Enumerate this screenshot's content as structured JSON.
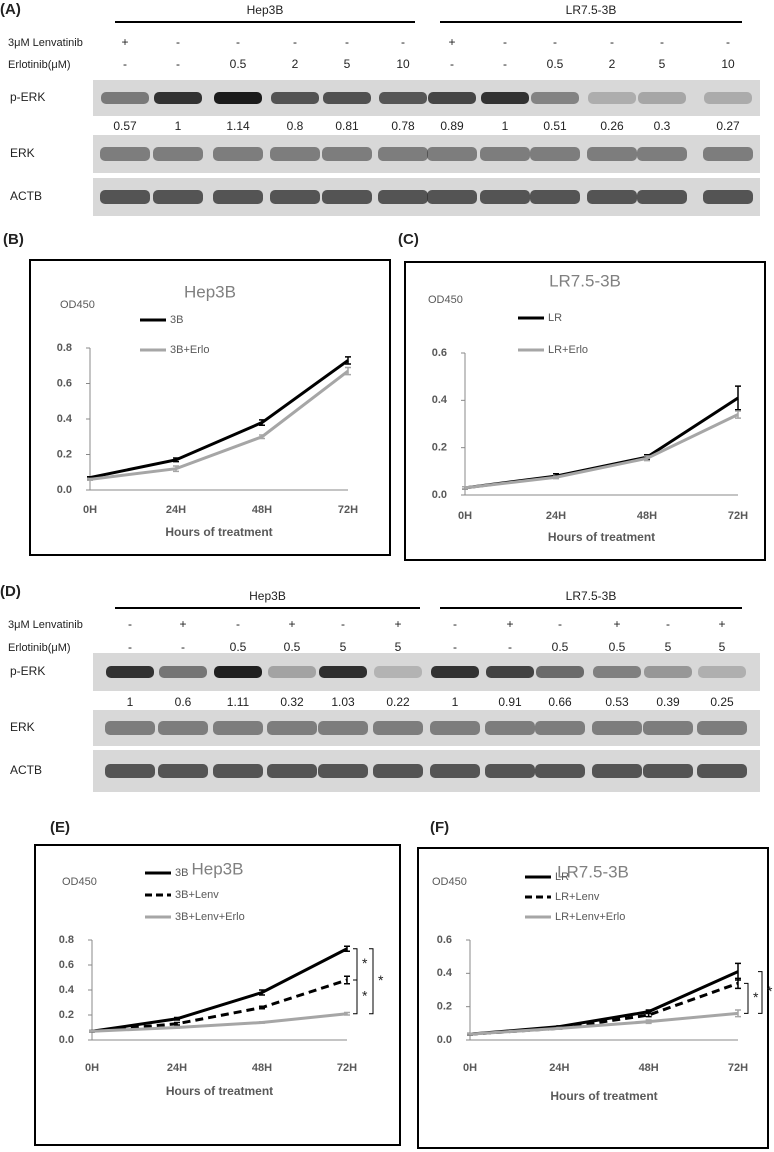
{
  "blots": [
    {
      "label": "(A)",
      "groups": [
        "Hep3B",
        "LR7.5-3B"
      ],
      "conditions": [
        {
          "name": "3μM Lenvatinib",
          "values": [
            "+",
            "-",
            "-",
            "-",
            "-",
            "-",
            "+",
            "-",
            "-",
            "-",
            "-",
            "-"
          ]
        },
        {
          "name": "Erlotinib(μM)",
          "values": [
            "-",
            "-",
            "0.5",
            "2",
            "5",
            "10",
            "-",
            "-",
            "0.5",
            "2",
            "5",
            "10"
          ]
        }
      ],
      "bands": [
        "p-ERK",
        "ERK",
        "ACTB"
      ],
      "quantification": [
        0.57,
        1,
        1.14,
        0.8,
        0.81,
        0.78,
        0.89,
        1,
        0.51,
        0.26,
        0.3,
        0.27
      ]
    },
    {
      "label": "(D)",
      "groups": [
        "Hep3B",
        "LR7.5-3B"
      ],
      "conditions": [
        {
          "name": "3μM Lenvatinib",
          "values": [
            "-",
            "+",
            "-",
            "+",
            "-",
            "+",
            "-",
            "+",
            "-",
            "+",
            "-",
            "+"
          ]
        },
        {
          "name": "Erlotinib(μM)",
          "values": [
            "-",
            "-",
            "0.5",
            "0.5",
            "5",
            "5",
            "-",
            "-",
            "0.5",
            "0.5",
            "5",
            "5"
          ]
        }
      ],
      "bands": [
        "p-ERK",
        "ERK",
        "ACTB"
      ],
      "quantification": [
        1,
        0.6,
        1.11,
        0.32,
        1.03,
        0.22,
        1,
        0.91,
        0.66,
        0.53,
        0.39,
        0.25
      ]
    }
  ],
  "chart_data": [
    {
      "label": "(B)",
      "type": "line",
      "title": "Hep3B",
      "y_label": "OD450",
      "x_label": "Hours of treatment",
      "categories": [
        "0H",
        "24H",
        "48H",
        "72H"
      ],
      "series": [
        {
          "name": "3B",
          "color": "#000000",
          "dashed": false,
          "values": [
            0.07,
            0.17,
            0.38,
            0.73
          ],
          "errors": [
            0.005,
            0.01,
            0.015,
            0.02
          ]
        },
        {
          "name": "3B+Erlo",
          "color": "#a6a6a6",
          "dashed": false,
          "values": [
            0.06,
            0.12,
            0.3,
            0.67
          ],
          "errors": [
            0.005,
            0.015,
            0.01,
            0.02
          ]
        }
      ],
      "ylim": [
        0,
        0.8
      ],
      "yticks": [
        {
          "value": 0,
          "label": "0.0"
        },
        0.2,
        0.4,
        0.6,
        0.8
      ]
    },
    {
      "label": "(C)",
      "type": "line",
      "title": "LR7.5-3B",
      "y_label": "OD450",
      "x_label": "Hours of treatment",
      "categories": [
        "0H",
        "24H",
        "48H",
        "72H"
      ],
      "series": [
        {
          "name": "LR",
          "color": "#000000",
          "dashed": false,
          "values": [
            0.03,
            0.08,
            0.16,
            0.41
          ],
          "errors": [
            0.005,
            0.01,
            0.01,
            0.05
          ]
        },
        {
          "name": "LR+Erlo",
          "color": "#a6a6a6",
          "dashed": false,
          "values": [
            0.03,
            0.075,
            0.155,
            0.34
          ],
          "errors": [
            0.005,
            0.005,
            0.01,
            0.015
          ]
        }
      ],
      "ylim": [
        0,
        0.6
      ],
      "yticks": [
        {
          "value": 0,
          "label": "0.0"
        },
        0.2,
        0.4,
        0.6
      ]
    },
    {
      "label": "(E)",
      "type": "line",
      "title": "Hep3B",
      "y_label": "OD450",
      "x_label": "Hours of treatment",
      "categories": [
        "0H",
        "24H",
        "48H",
        "72H"
      ],
      "series": [
        {
          "name": "3B",
          "color": "#000000",
          "dashed": false,
          "values": [
            0.07,
            0.17,
            0.38,
            0.73
          ],
          "errors": [
            0.005,
            0.01,
            0.02,
            0.02
          ]
        },
        {
          "name": "3B+Lenv",
          "color": "#000000",
          "dashed": true,
          "values": [
            0.07,
            0.13,
            0.26,
            0.48
          ],
          "errors": [
            0.005,
            0.01,
            0.01,
            0.03
          ]
        },
        {
          "name": "3B+Lenv+Erlo",
          "color": "#a6a6a6",
          "dashed": false,
          "values": [
            0.07,
            0.1,
            0.14,
            0.21
          ],
          "errors": [
            0.005,
            0.005,
            0.005,
            0.01
          ]
        }
      ],
      "annotations": [
        "*",
        "*",
        "*"
      ],
      "ylim": [
        0,
        0.8
      ],
      "yticks": [
        {
          "value": 0,
          "label": "0.0"
        },
        0.2,
        0.4,
        0.6,
        0.8
      ]
    },
    {
      "label": "(F)",
      "type": "line",
      "title": "LR7.5-3B",
      "y_label": "OD450",
      "x_label": "Hours of treatment",
      "categories": [
        "0H",
        "24H",
        "48H",
        "72H"
      ],
      "series": [
        {
          "name": "LR",
          "color": "#000000",
          "dashed": false,
          "values": [
            0.035,
            0.08,
            0.17,
            0.41
          ],
          "errors": [
            0.005,
            0.005,
            0.01,
            0.05
          ]
        },
        {
          "name": "LR+Lenv",
          "color": "#000000",
          "dashed": true,
          "values": [
            0.035,
            0.07,
            0.15,
            0.34
          ],
          "errors": [
            0.005,
            0.005,
            0.01,
            0.03
          ]
        },
        {
          "name": "LR+Lenv+Erlo",
          "color": "#a6a6a6",
          "dashed": false,
          "values": [
            0.035,
            0.07,
            0.11,
            0.16
          ],
          "errors": [
            0.005,
            0.005,
            0.01,
            0.02
          ]
        }
      ],
      "annotations": [
        "*",
        "*"
      ],
      "ylim": [
        0,
        0.6
      ],
      "yticks": [
        {
          "value": 0,
          "label": "0.0"
        },
        0.2,
        0.4,
        0.6
      ]
    }
  ]
}
